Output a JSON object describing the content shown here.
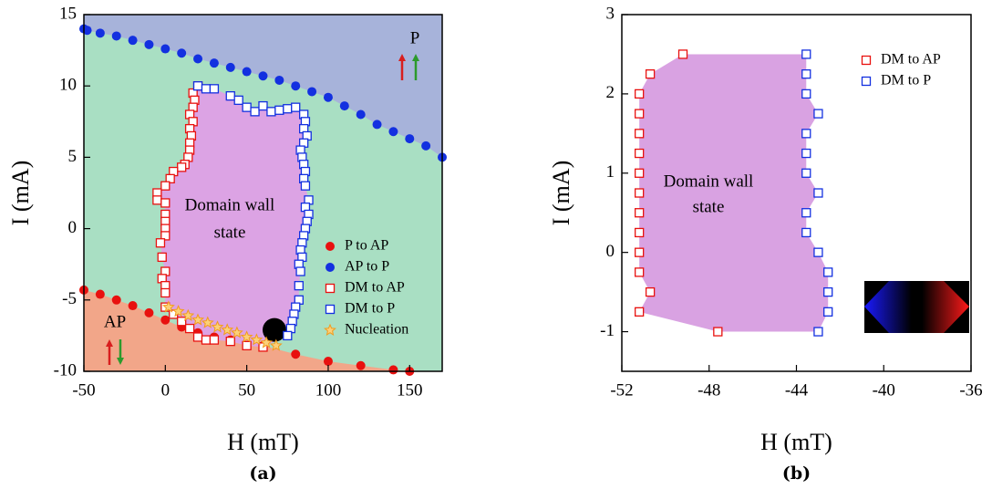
{
  "chart_data": [
    {
      "type": "scatter",
      "caption": "(a)",
      "xlabel": "H (mT)",
      "ylabel": "I (mA)",
      "xlim": [
        -50,
        170
      ],
      "ylim": [
        -10,
        15
      ],
      "xticks": [
        -50,
        0,
        50,
        100,
        150
      ],
      "yticks": [
        -10,
        -5,
        0,
        5,
        10,
        15
      ],
      "background": "#a9dfc3",
      "annotations": [
        "P",
        "AP",
        "Domain wall",
        "state"
      ],
      "series": [
        {
          "name": "P to AP",
          "color": "#e8110f",
          "marker": "circle",
          "fill": "#f2a689",
          "fill_to": "bottom",
          "x": [
            -50,
            -40,
            -30,
            -20,
            -10,
            0,
            10,
            20,
            30,
            40,
            60,
            80,
            100,
            120,
            140,
            150
          ],
          "values": [
            -4.3,
            -4.6,
            -5.0,
            -5.4,
            -5.9,
            -6.4,
            -6.9,
            -7.3,
            -7.6,
            -7.8,
            -8.2,
            -8.8,
            -9.3,
            -9.6,
            -9.9,
            -10
          ]
        },
        {
          "name": "AP to P",
          "color": "#1330e0",
          "marker": "circle",
          "fill": "#a7b3da",
          "fill_to": "top",
          "x": [
            -50,
            -48,
            -40,
            -30,
            -20,
            -10,
            0,
            10,
            20,
            30,
            40,
            50,
            60,
            70,
            80,
            90,
            100,
            110,
            120,
            130,
            140,
            150,
            160,
            170
          ],
          "values": [
            14,
            13.9,
            13.7,
            13.5,
            13.2,
            12.9,
            12.6,
            12.3,
            11.9,
            11.6,
            11.3,
            11.0,
            10.7,
            10.4,
            10.0,
            9.6,
            9.2,
            8.6,
            8.0,
            7.3,
            6.8,
            6.3,
            5.8,
            5.0
          ]
        },
        {
          "name": "DM to AP",
          "color": "#e8110f",
          "marker": "square",
          "fill": "#dca3e4",
          "fill_to": "next",
          "x": [
            20,
            17,
            18,
            17,
            15,
            17,
            15,
            16,
            15,
            15,
            14,
            12,
            10,
            5,
            3,
            0,
            -5,
            -5,
            0,
            0,
            0,
            0,
            0,
            -3,
            -2,
            0,
            -2,
            0,
            0,
            0,
            5,
            10,
            15,
            20,
            25,
            30,
            40,
            50,
            60
          ],
          "values": [
            10,
            9.5,
            9,
            8.5,
            8,
            7.5,
            7,
            6.5,
            6,
            5.5,
            5,
            4.5,
            4.3,
            4,
            3.5,
            3,
            2.5,
            2,
            1.8,
            1,
            0.5,
            0,
            -0.5,
            -1,
            -2,
            -3,
            -3.5,
            -4,
            -4.5,
            -5.5,
            -6,
            -6.5,
            -7,
            -7.6,
            -7.8,
            -7.8,
            -7.9,
            -8.2,
            -8.3
          ]
        },
        {
          "name": "DM to P",
          "color": "#1330e0",
          "marker": "square",
          "x": [
            20,
            25,
            30,
            40,
            45,
            50,
            55,
            60,
            65,
            70,
            75,
            80,
            85,
            86,
            85,
            87,
            85,
            83,
            84,
            85,
            86,
            85,
            86,
            88,
            86,
            88,
            87,
            86,
            85,
            84,
            83,
            84,
            82,
            83,
            82,
            82,
            80,
            79,
            78,
            77,
            75
          ],
          "values": [
            10,
            9.8,
            9.8,
            9.3,
            9.0,
            8.5,
            8.2,
            8.6,
            8.2,
            8.3,
            8.4,
            8.5,
            8.0,
            7.5,
            7,
            6.5,
            6,
            5.5,
            5,
            4.5,
            4,
            3.5,
            3,
            2,
            1.5,
            1,
            0.5,
            0,
            -0.5,
            -1,
            -1.5,
            -2,
            -2.5,
            -3,
            -4,
            -5,
            -5.5,
            -6,
            -6.5,
            -7,
            -7.5
          ]
        },
        {
          "name": "Nucleation",
          "color": "#f29b1d",
          "marker": "star",
          "x": [
            2,
            8,
            14,
            20,
            26,
            32,
            38,
            44,
            50,
            56,
            62,
            68
          ],
          "values": [
            -5.5,
            -5.8,
            -6.1,
            -6.4,
            -6.6,
            -6.9,
            -7.1,
            -7.3,
            -7.6,
            -7.8,
            -8.0,
            -8.2
          ]
        }
      ]
    },
    {
      "type": "scatter",
      "caption": "(b)",
      "xlabel": "H (mT)",
      "ylabel": "I (mA)",
      "xlim": [
        -52,
        -36
      ],
      "ylim": [
        -1.5,
        3
      ],
      "xticks": [
        -52,
        -48,
        -44,
        -40,
        -36
      ],
      "yticks": [
        -1,
        0,
        1,
        2,
        3
      ],
      "background": "#ffffff",
      "annotations": [
        "Domain wall",
        "state"
      ],
      "series": [
        {
          "name": "DM to AP",
          "color": "#e8110f",
          "marker": "square",
          "fill": "#d9a2e2",
          "fill_to": "next",
          "x": [
            -49.2,
            -50.7,
            -51.2,
            -51.2,
            -51.2,
            -51.2,
            -51.2,
            -51.2,
            -51.2,
            -51.2,
            -51.2,
            -51.2,
            -50.7,
            -51.2,
            -47.6
          ],
          "values": [
            2.5,
            2.25,
            2.0,
            1.75,
            1.5,
            1.25,
            1.0,
            0.75,
            0.5,
            0.25,
            0,
            -0.25,
            -0.5,
            -0.75,
            -1.0
          ]
        },
        {
          "name": "DM to P",
          "color": "#1330e0",
          "marker": "square",
          "x": [
            -43.55,
            -43.55,
            -43.55,
            -43.0,
            -43.55,
            -43.55,
            -43.55,
            -43.0,
            -43.55,
            -43.55,
            -43.0,
            -42.55,
            -42.55,
            -42.55,
            -43.0
          ],
          "values": [
            2.5,
            2.25,
            2.0,
            1.75,
            1.5,
            1.25,
            1.0,
            0.75,
            0.5,
            0.25,
            0.0,
            -0.25,
            -0.5,
            -0.75,
            -1.0
          ]
        }
      ]
    }
  ]
}
